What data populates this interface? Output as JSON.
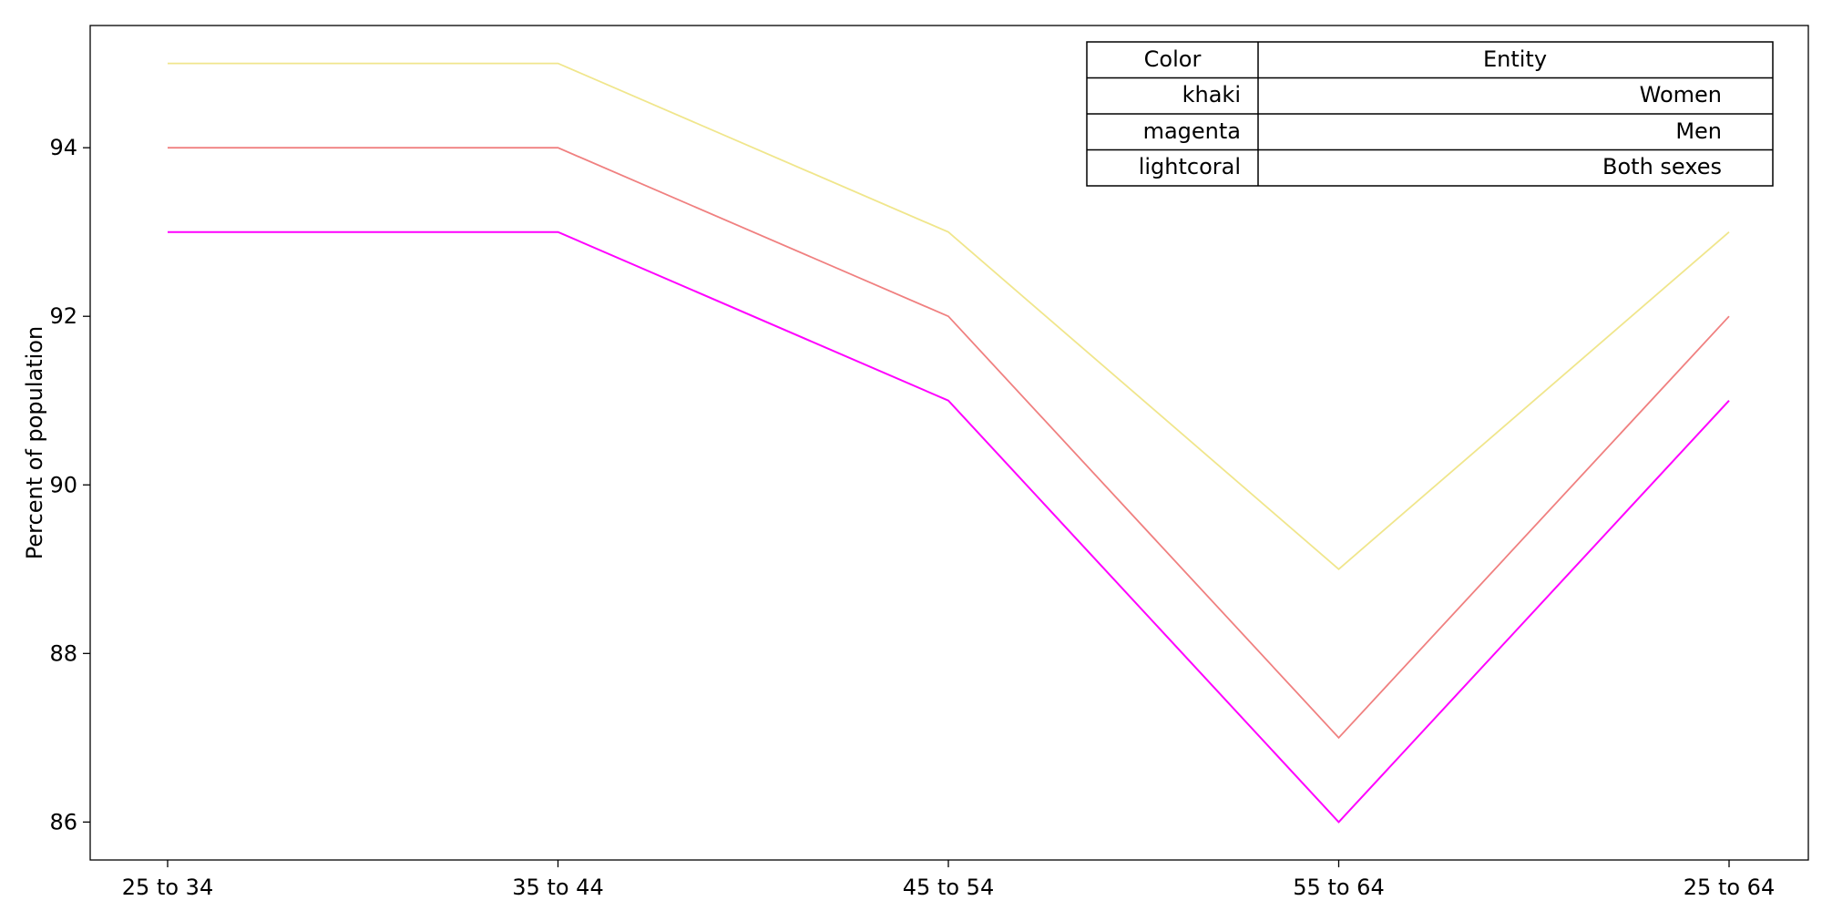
{
  "chart_data": {
    "type": "line",
    "categories": [
      "25 to 34",
      "35 to 44",
      "45 to 54",
      "55 to 64",
      "25 to 64"
    ],
    "series": [
      {
        "name": "Women",
        "color": "#f0e68c",
        "values": [
          95,
          95,
          93,
          89,
          93
        ]
      },
      {
        "name": "Both sexes",
        "color": "#f08080",
        "values": [
          94,
          94,
          92,
          87,
          92
        ]
      },
      {
        "name": "Men",
        "color": "#ff00ff",
        "values": [
          93,
          93,
          91,
          86,
          91
        ]
      }
    ],
    "title": "",
    "xlabel": "",
    "ylabel": "Percent of population",
    "ylim": [
      85.55,
      95.45
    ],
    "yticks": [
      86,
      88,
      90,
      92,
      94
    ],
    "grid": false,
    "legend_table": {
      "headers": [
        "Color",
        "Entity"
      ],
      "rows": [
        {
          "color": "khaki",
          "entity": "Women"
        },
        {
          "color": "magenta",
          "entity": "Men"
        },
        {
          "color": "lightcoral",
          "entity": "Both sexes"
        }
      ],
      "placement": "top-right"
    }
  }
}
